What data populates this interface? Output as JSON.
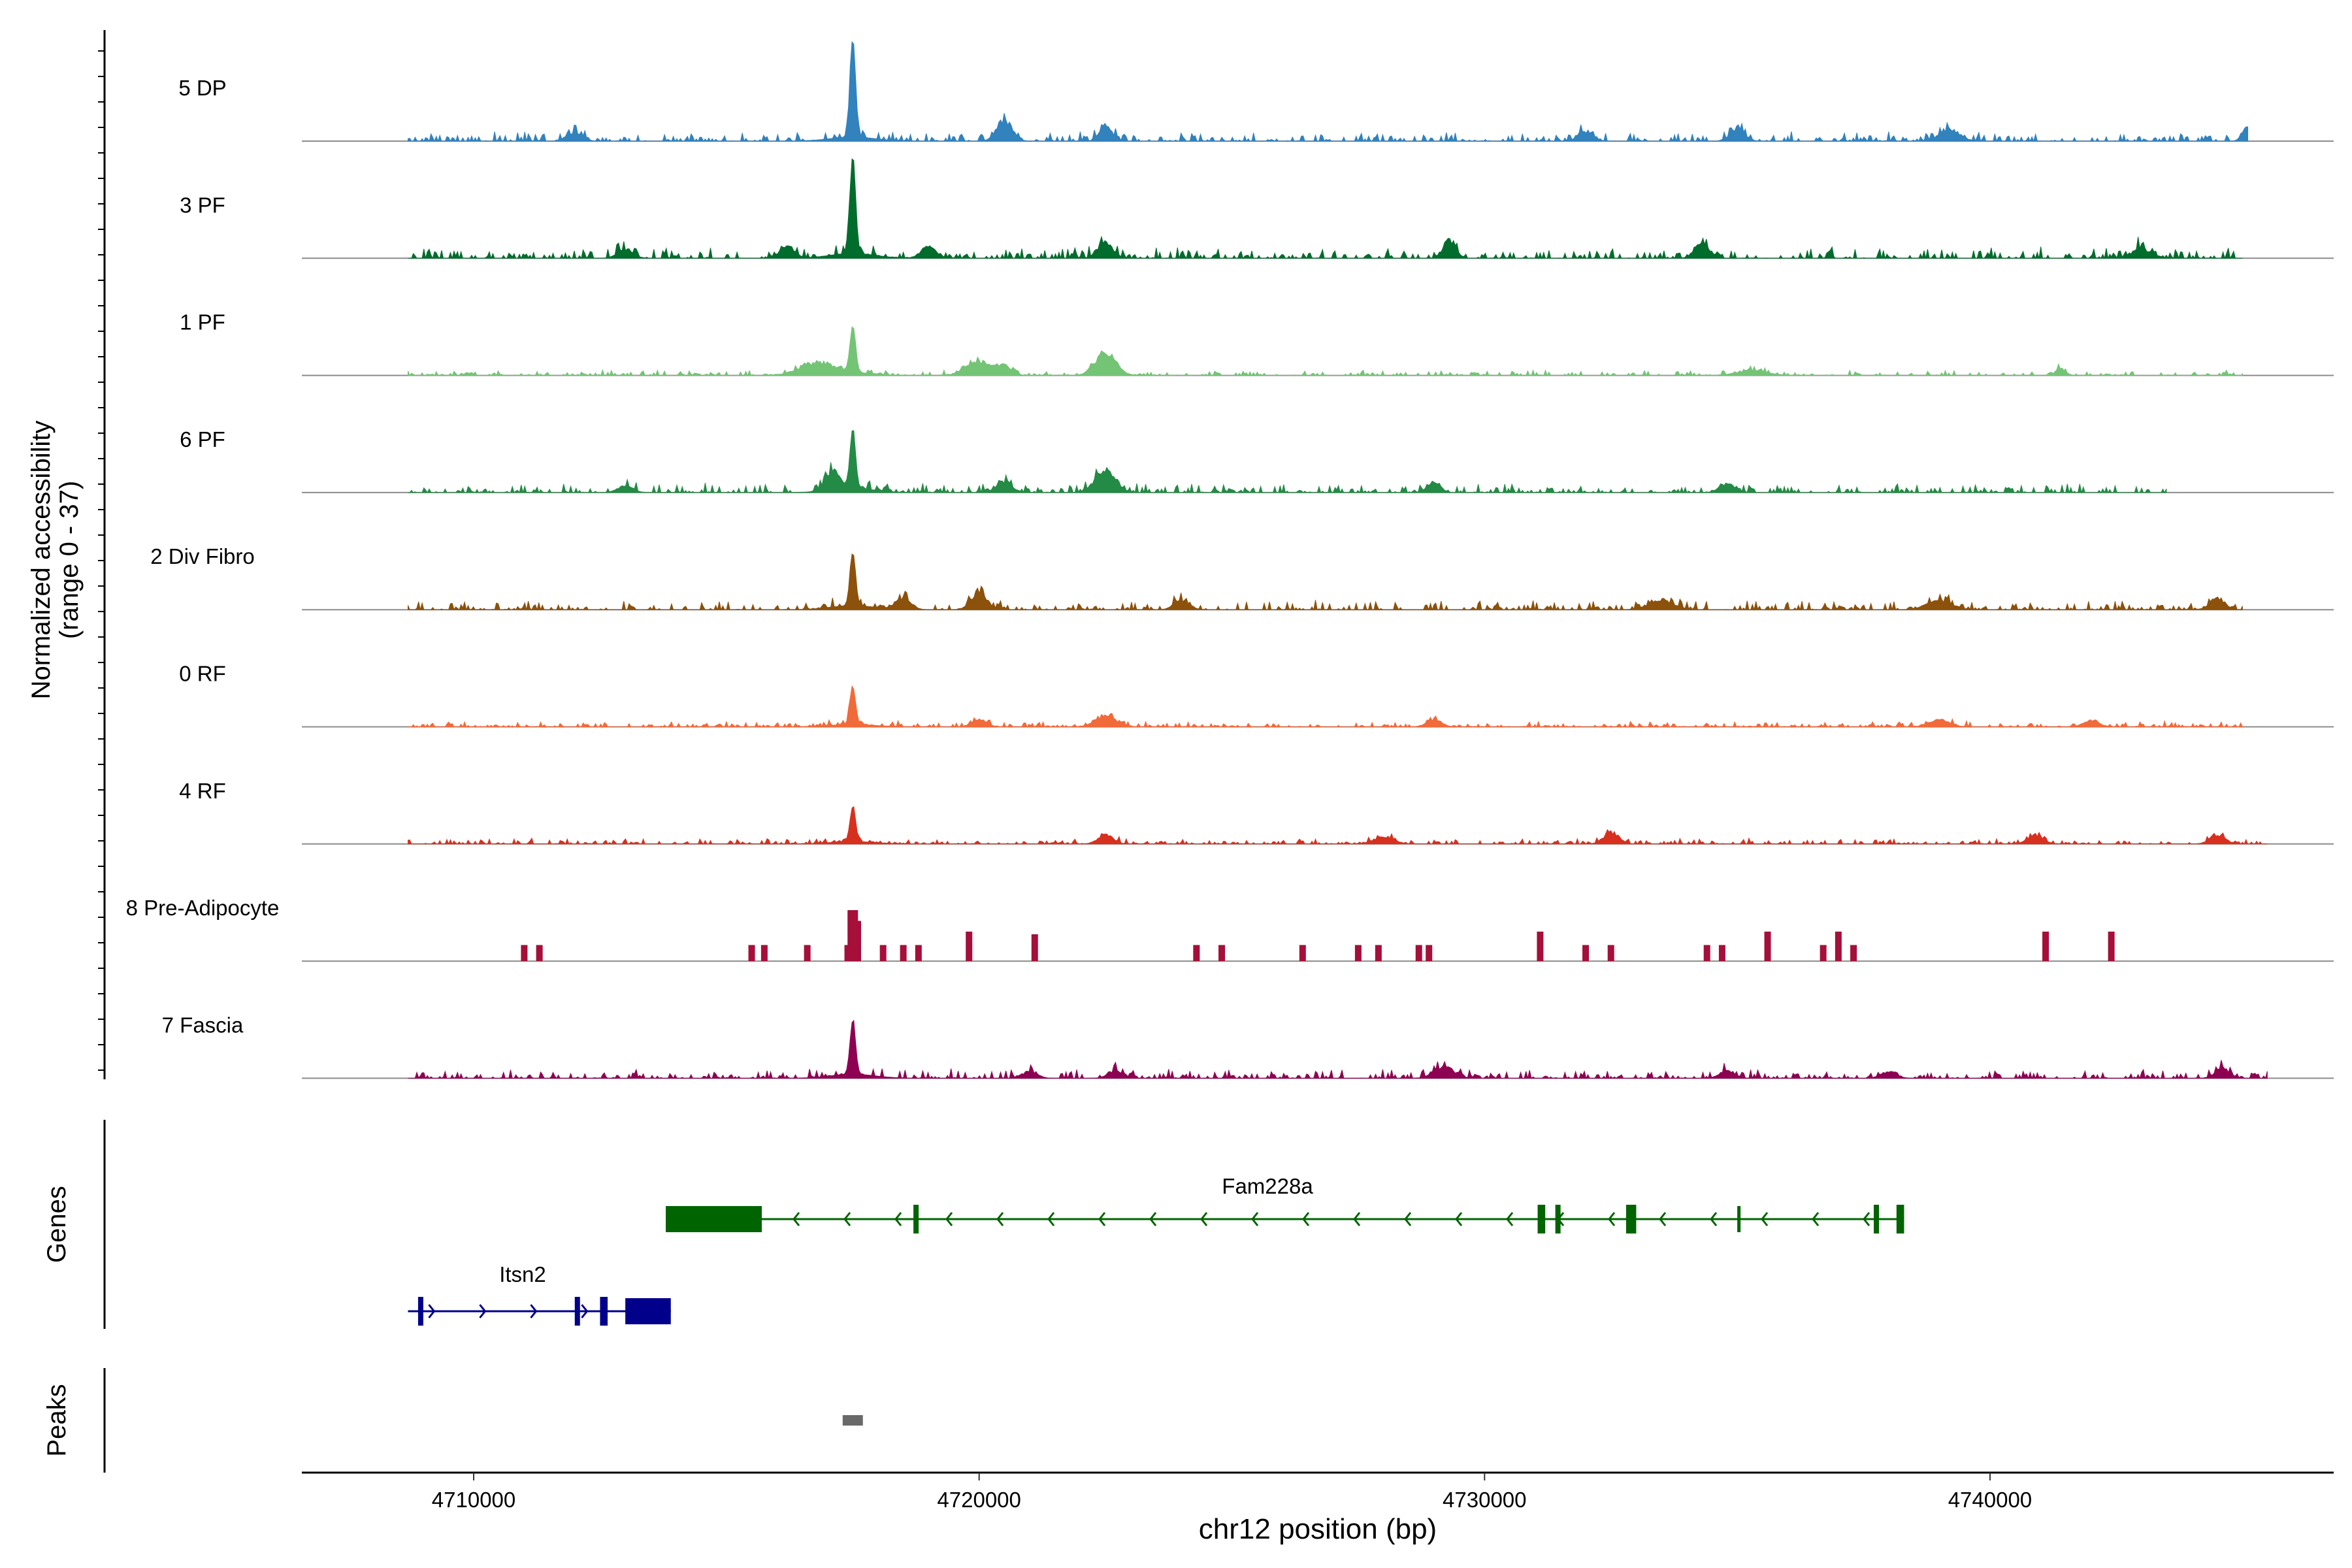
{
  "chart_data": {
    "type": "area",
    "title": "",
    "y_axis_label": "Normalized accessibility",
    "y_axis_range_label": "(range 0 - 37)",
    "y_range": [
      0,
      37
    ],
    "x_axis_label": "chr12 position (bp)",
    "x_range": [
      4706600,
      4746800
    ],
    "x_ticks": [
      4710000,
      4720000,
      4730000,
      4740000
    ],
    "x_tick_labels": [
      "4710000",
      "4720000",
      "4730000",
      "4740000"
    ],
    "genes_label": "Genes",
    "peaks_label": "Peaks",
    "tracks": [
      {
        "name": "5 DP",
        "color": "#3182bd",
        "style": "continuous",
        "start": 4708700,
        "end": 4745100,
        "peak_height": 37,
        "baseline": 2.5,
        "bumps": [
          [
            4720500,
            9,
            150
          ],
          [
            4722500,
            7,
            120
          ],
          [
            4739200,
            5,
            200
          ],
          [
            4745100,
            7,
            100
          ],
          [
            4735000,
            5,
            150
          ],
          [
            4732000,
            4,
            150
          ],
          [
            4712000,
            4,
            150
          ]
        ]
      },
      {
        "name": "3 PF",
        "color": "#006d2c",
        "style": "continuous",
        "start": 4708700,
        "end": 4745000,
        "peak_height": 37,
        "baseline": 3,
        "bumps": [
          [
            4716200,
            5,
            150
          ],
          [
            4719000,
            5,
            150
          ],
          [
            4722500,
            7,
            150
          ],
          [
            4729300,
            8,
            120
          ],
          [
            4734300,
            6,
            150
          ],
          [
            4713000,
            4,
            150
          ],
          [
            4743000,
            4,
            200
          ]
        ]
      },
      {
        "name": "1 PF",
        "color": "#74c476",
        "style": "continuous",
        "start": 4708700,
        "end": 4745000,
        "peak_height": 17,
        "baseline": 1.5,
        "bumps": [
          [
            4716800,
            5,
            350
          ],
          [
            4720000,
            6,
            250
          ],
          [
            4720500,
            4,
            150
          ],
          [
            4722500,
            10,
            200
          ],
          [
            4741400,
            3,
            100
          ],
          [
            4735300,
            2,
            300
          ]
        ]
      },
      {
        "name": "6 PF",
        "color": "#238b45",
        "style": "continuous",
        "start": 4708700,
        "end": 4743500,
        "peak_height": 22,
        "baseline": 2.5,
        "bumps": [
          [
            4717100,
            8,
            150
          ],
          [
            4720500,
            5,
            150
          ],
          [
            4722500,
            10,
            200
          ],
          [
            4729000,
            5,
            120
          ],
          [
            4734800,
            4,
            150
          ],
          [
            4713000,
            3,
            150
          ]
        ]
      },
      {
        "name": "2 Div Fibro",
        "color": "#8c510a",
        "style": "continuous",
        "start": 4708700,
        "end": 4745000,
        "peak_height": 20,
        "baseline": 2.5,
        "bumps": [
          [
            4718500,
            5,
            150
          ],
          [
            4720000,
            8,
            150
          ],
          [
            4724000,
            4,
            150
          ],
          [
            4733500,
            4,
            250
          ],
          [
            4739000,
            4,
            250
          ],
          [
            4744500,
            5,
            150
          ]
        ]
      },
      {
        "name": "0 RF",
        "color": "#f16a3a",
        "style": "continuous",
        "start": 4708700,
        "end": 4745000,
        "peak_height": 14,
        "baseline": 1.5,
        "bumps": [
          [
            4722500,
            5,
            200
          ],
          [
            4720000,
            3,
            150
          ],
          [
            4739000,
            3,
            200
          ],
          [
            4742000,
            3,
            150
          ],
          [
            4729000,
            3,
            150
          ]
        ]
      },
      {
        "name": "4 RF",
        "color": "#d7301f",
        "style": "continuous",
        "start": 4708700,
        "end": 4745500,
        "peak_height": 13,
        "baseline": 1.5,
        "bumps": [
          [
            4722500,
            4,
            150
          ],
          [
            4732500,
            5,
            150
          ],
          [
            4740900,
            4,
            150
          ],
          [
            4744500,
            4,
            150
          ],
          [
            4728000,
            3,
            200
          ]
        ]
      },
      {
        "name": "8 Pre-Adipocyte",
        "color": "#a50f3a",
        "style": "blocks",
        "peak_height": 19,
        "baseline": 0,
        "blocks": [
          [
            4711000,
            6
          ],
          [
            4711300,
            6
          ],
          [
            4715500,
            6
          ],
          [
            4715750,
            6
          ],
          [
            4716600,
            6
          ],
          [
            4717400,
            6
          ],
          [
            4717600,
            15
          ],
          [
            4718100,
            6
          ],
          [
            4718500,
            6
          ],
          [
            4718800,
            6
          ],
          [
            4719800,
            11
          ],
          [
            4721100,
            10
          ],
          [
            4724300,
            6
          ],
          [
            4724800,
            6
          ],
          [
            4726400,
            6
          ],
          [
            4727500,
            6
          ],
          [
            4727900,
            6
          ],
          [
            4728700,
            6
          ],
          [
            4728900,
            6
          ],
          [
            4731100,
            11
          ],
          [
            4732000,
            6
          ],
          [
            4732500,
            6
          ],
          [
            4734400,
            6
          ],
          [
            4734700,
            6
          ],
          [
            4735600,
            11
          ],
          [
            4736700,
            6
          ],
          [
            4737000,
            11
          ],
          [
            4737300,
            6
          ],
          [
            4741100,
            11
          ],
          [
            4742400,
            11
          ]
        ]
      },
      {
        "name": "7 Fascia",
        "color": "#8e0152",
        "style": "continuous",
        "start": 4708700,
        "end": 4745500,
        "peak_height": 20,
        "baseline": 2.5,
        "bumps": [
          [
            4729200,
            5,
            200
          ],
          [
            4721000,
            3,
            150
          ],
          [
            4722700,
            3,
            150
          ],
          [
            4734800,
            3,
            150
          ],
          [
            4738000,
            3,
            150
          ],
          [
            4744600,
            4,
            150
          ]
        ]
      }
    ],
    "shared_peak_center": 4717500,
    "genes": [
      {
        "name": "Fam228a",
        "color": "#006400",
        "strand": "-",
        "start": 4713800,
        "end": 4738300,
        "exons": [
          [
            4713800,
            4715700
          ],
          [
            4718700,
            4718800
          ],
          [
            4731050,
            4731200
          ],
          [
            4731400,
            4731500
          ],
          [
            4732800,
            4733000
          ],
          [
            4737700,
            4737780
          ],
          [
            4738150,
            4738300
          ]
        ],
        "introns_ticks": [
          [
            4735000,
            4735060
          ]
        ]
      },
      {
        "name": "Itsn2",
        "color": "#00008b",
        "strand": "+",
        "start": 4708700,
        "end": 4713900,
        "exons": [
          [
            4708900,
            4708960
          ],
          [
            4712000,
            4712060
          ],
          [
            4712500,
            4712650
          ],
          [
            4713000,
            4713900
          ]
        ]
      }
    ],
    "peaks": [
      {
        "start": 4717300,
        "end": 4717700,
        "color": "#696969"
      }
    ]
  }
}
